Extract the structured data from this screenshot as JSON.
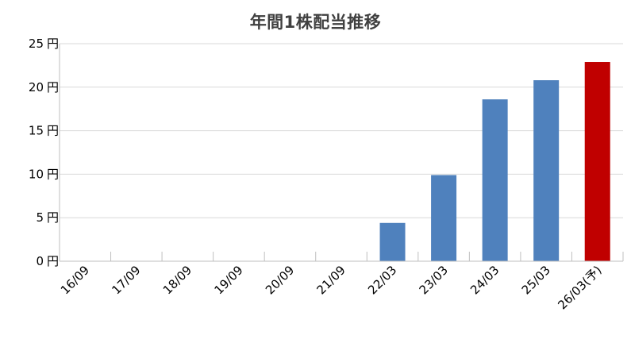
{
  "chart_data": {
    "type": "bar",
    "title": "年間1株配当推移",
    "xlabel": "",
    "ylabel": "",
    "y_unit": "円",
    "ylim": [
      0,
      25
    ],
    "yticks": [
      0,
      5,
      10,
      15,
      20,
      25
    ],
    "grid": true,
    "categories": [
      "16/09",
      "17/09",
      "18/09",
      "19/09",
      "20/09",
      "21/09",
      "22/03",
      "23/03",
      "24/03",
      "25/03",
      "26/03(予)"
    ],
    "values": [
      0,
      0,
      0,
      0,
      0,
      0,
      4.4,
      9.9,
      18.6,
      20.8,
      22.9
    ],
    "colors": {
      "actual": "#4f81bd",
      "forecast": "#c00000",
      "grid": "#d9d9d9",
      "axis": "#bfbfbf"
    },
    "forecast_index": 10
  }
}
